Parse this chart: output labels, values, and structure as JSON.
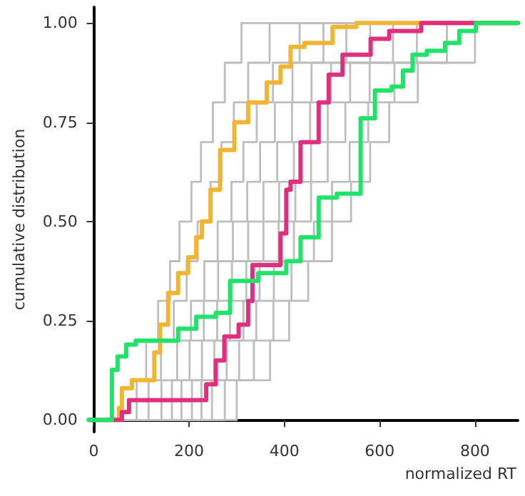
{
  "chart_data": {
    "type": "step",
    "xlabel": "normalized RT",
    "ylabel": "cumulative distribution",
    "xlim": [
      -10,
      890
    ],
    "ylim": [
      -0.03,
      1.04
    ],
    "xticks": [
      0,
      200,
      400,
      600,
      800
    ],
    "yticks": [
      {
        "value": 0,
        "label": "0.00"
      },
      {
        "value": 0.25,
        "label": "0.25"
      },
      {
        "value": 0.5,
        "label": "0.50"
      },
      {
        "value": 0.75,
        "label": "0.75"
      },
      {
        "value": 1,
        "label": "1.00"
      }
    ],
    "grid": false,
    "marker": "none",
    "line_style": "solid",
    "series": [
      {
        "color": "#bebebe",
        "x": [
          -10,
          90,
          110,
          135,
          160,
          180,
          205,
          225,
          250,
          275,
          310,
          890
        ],
        "values": [
          0,
          0.1,
          0.2,
          0.3,
          0.4,
          0.5,
          0.6,
          0.7,
          0.8,
          0.9,
          1,
          1
        ]
      },
      {
        "color": "#bebebe",
        "x": [
          -10,
          115,
          141,
          168,
          195,
          218,
          245,
          268,
          294,
          324,
          369,
          890
        ],
        "values": [
          0,
          0.1,
          0.2,
          0.3,
          0.4,
          0.5,
          0.6,
          0.7,
          0.8,
          0.9,
          1,
          1
        ]
      },
      {
        "color": "#bebebe",
        "x": [
          -10,
          142,
          175,
          204,
          232,
          260,
          289,
          314,
          342,
          376,
          432,
          890
        ],
        "values": [
          0,
          0.1,
          0.2,
          0.3,
          0.4,
          0.5,
          0.6,
          0.7,
          0.8,
          0.9,
          1,
          1
        ]
      },
      {
        "color": "#bebebe",
        "x": [
          -10,
          164,
          201,
          231,
          261,
          292,
          322,
          349,
          380,
          417,
          482,
          890
        ],
        "values": [
          0,
          0.1,
          0.2,
          0.3,
          0.4,
          0.5,
          0.6,
          0.7,
          0.8,
          0.9,
          1,
          1
        ]
      },
      {
        "color": "#bebebe",
        "x": [
          -10,
          184,
          227,
          259,
          290,
          324,
          356,
          385,
          416,
          457,
          530,
          890
        ],
        "values": [
          0,
          0.1,
          0.2,
          0.3,
          0.4,
          0.5,
          0.6,
          0.7,
          0.8,
          0.9,
          1,
          1
        ]
      },
      {
        "color": "#bebebe",
        "x": [
          -10,
          206,
          253,
          286,
          320,
          356,
          389,
          420,
          454,
          498,
          580,
          890
        ],
        "values": [
          0,
          0.1,
          0.2,
          0.3,
          0.4,
          0.5,
          0.6,
          0.7,
          0.8,
          0.9,
          1,
          1
        ]
      },
      {
        "color": "#bebebe",
        "x": [
          -10,
          226,
          279,
          314,
          348,
          388,
          423,
          456,
          491,
          538,
          628,
          890
        ],
        "values": [
          0,
          0.1,
          0.2,
          0.3,
          0.4,
          0.5,
          0.6,
          0.7,
          0.8,
          0.9,
          1,
          1
        ]
      },
      {
        "color": "#bebebe",
        "x": [
          -10,
          248,
          305,
          341,
          378,
          420,
          456,
          491,
          528,
          579,
          678,
          890
        ],
        "values": [
          0,
          0.1,
          0.2,
          0.3,
          0.4,
          0.5,
          0.6,
          0.7,
          0.8,
          0.9,
          1,
          1
        ]
      },
      {
        "color": "#bebebe",
        "x": [
          -10,
          275,
          336,
          377,
          415,
          462,
          500,
          537,
          576,
          631,
          741,
          890
        ],
        "values": [
          0,
          0.1,
          0.2,
          0.3,
          0.4,
          0.5,
          0.6,
          0.7,
          0.8,
          0.9,
          1,
          1
        ]
      },
      {
        "color": "#bebebe",
        "x": [
          -10,
          300,
          370,
          410,
          450,
          500,
          540,
          580,
          620,
          680,
          800,
          890
        ],
        "values": [
          0,
          0.1,
          0.2,
          0.3,
          0.4,
          0.5,
          0.6,
          0.7,
          0.8,
          0.9,
          1,
          1
        ]
      },
      {
        "color": "#f2b531",
        "x": [
          -10,
          53,
          59,
          80,
          127,
          139,
          156,
          177,
          198,
          215,
          227,
          245,
          265,
          295,
          324,
          363,
          392,
          413,
          442,
          501,
          551,
          890
        ],
        "values": [
          0,
          0.03,
          0.08,
          0.1,
          0.17,
          0.24,
          0.32,
          0.37,
          0.41,
          0.46,
          0.5,
          0.58,
          0.68,
          0.75,
          0.8,
          0.85,
          0.89,
          0.94,
          0.95,
          0.99,
          1,
          1
        ]
      },
      {
        "color": "#e0307d",
        "x": [
          -10,
          59,
          74,
          236,
          256,
          274,
          304,
          324,
          333,
          392,
          404,
          413,
          434,
          472,
          493,
          522,
          581,
          620,
          687,
          890
        ],
        "values": [
          0,
          0.02,
          0.05,
          0.09,
          0.15,
          0.21,
          0.24,
          0.3,
          0.39,
          0.47,
          0.58,
          0.6,
          0.7,
          0.8,
          0.87,
          0.92,
          0.96,
          0.98,
          1,
          1
        ]
      },
      {
        "color": "#22e36a",
        "x": [
          -10,
          38,
          50,
          68,
          88,
          177,
          215,
          256,
          286,
          345,
          404,
          434,
          472,
          510,
          560,
          590,
          625,
          649,
          669,
          699,
          737,
          767,
          802,
          890
        ],
        "values": [
          0,
          0.126,
          0.16,
          0.19,
          0.2,
          0.23,
          0.26,
          0.27,
          0.35,
          0.37,
          0.4,
          0.46,
          0.56,
          0.57,
          0.76,
          0.83,
          0.84,
          0.88,
          0.92,
          0.93,
          0.95,
          0.98,
          1,
          1
        ]
      }
    ]
  }
}
